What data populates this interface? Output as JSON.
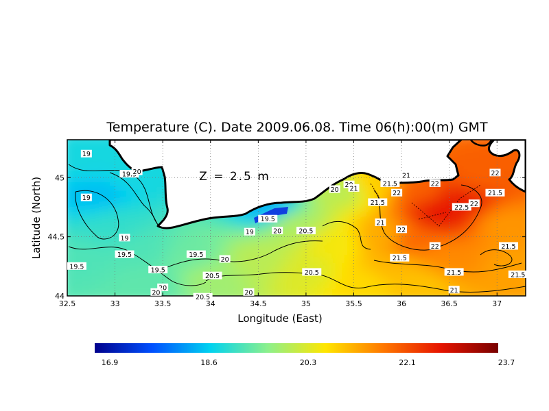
{
  "chart_data": {
    "type": "heatmap",
    "title": "Temperature (C). Date 2009.06.08. Time 06(h):00(m) GMT",
    "xlabel": "Longitude (East)",
    "ylabel": "Latitude (North)",
    "annotation": "Z = 2.5 m",
    "xlim": [
      32.5,
      37.3
    ],
    "ylim": [
      44.0,
      45.32
    ],
    "grid": true,
    "x_ticks": [
      "32.5",
      "33",
      "33.5",
      "34",
      "34.5",
      "35",
      "35.5",
      "36",
      "36.5",
      "37"
    ],
    "y_ticks": [
      "44",
      "44.5",
      "45"
    ],
    "colorbar": {
      "min": 16.9,
      "max": 23.7,
      "labels": [
        "16.9",
        "18.6",
        "20.3",
        "22.1",
        "23.7"
      ],
      "colors": [
        "#00008c",
        "#0050ff",
        "#00d2f0",
        "#8cf08c",
        "#ffe600",
        "#ff7800",
        "#e61400",
        "#780000"
      ]
    },
    "field_samples": [
      {
        "lon": 32.6,
        "lat": 45.15,
        "value": 19.0
      },
      {
        "lon": 32.8,
        "lat": 44.85,
        "value": 18.7
      },
      {
        "lon": 33.2,
        "lat": 45.05,
        "value": 19.0
      },
      {
        "lon": 33.0,
        "lat": 44.6,
        "value": 19.2
      },
      {
        "lon": 32.6,
        "lat": 44.3,
        "value": 19.4
      },
      {
        "lon": 33.3,
        "lat": 44.4,
        "value": 19.4
      },
      {
        "lon": 33.4,
        "lat": 44.1,
        "value": 19.5
      },
      {
        "lon": 33.8,
        "lat": 44.35,
        "value": 19.6
      },
      {
        "lon": 34.0,
        "lat": 44.15,
        "value": 20.0
      },
      {
        "lon": 34.5,
        "lat": 44.3,
        "value": 20.2
      },
      {
        "lon": 34.6,
        "lat": 44.75,
        "value": 18.6
      },
      {
        "lon": 34.9,
        "lat": 44.6,
        "value": 20.1
      },
      {
        "lon": 35.0,
        "lat": 44.2,
        "value": 20.5
      },
      {
        "lon": 35.3,
        "lat": 44.45,
        "value": 20.7
      },
      {
        "lon": 35.4,
        "lat": 44.9,
        "value": 20.2
      },
      {
        "lon": 35.6,
        "lat": 44.1,
        "value": 20.9
      },
      {
        "lon": 35.8,
        "lat": 44.5,
        "value": 21.3
      },
      {
        "lon": 35.7,
        "lat": 44.95,
        "value": 21.0
      },
      {
        "lon": 36.2,
        "lat": 44.9,
        "value": 22.0
      },
      {
        "lon": 36.4,
        "lat": 44.7,
        "value": 22.7
      },
      {
        "lon": 36.6,
        "lat": 44.82,
        "value": 22.6
      },
      {
        "lon": 36.8,
        "lat": 45.0,
        "value": 22.0
      },
      {
        "lon": 36.1,
        "lat": 44.45,
        "value": 21.9
      },
      {
        "lon": 36.5,
        "lat": 44.3,
        "value": 21.6
      },
      {
        "lon": 37.1,
        "lat": 44.6,
        "value": 21.5
      },
      {
        "lon": 37.2,
        "lat": 44.25,
        "value": 21.4
      },
      {
        "lon": 36.2,
        "lat": 44.1,
        "value": 21.1
      },
      {
        "lon": 35.9,
        "lat": 44.25,
        "value": 21.2
      }
    ],
    "contour_labels": [
      {
        "text": "19",
        "lon": 32.7,
        "lat": 45.2
      },
      {
        "text": "19.5",
        "lon": 33.15,
        "lat": 45.03
      },
      {
        "text": "20",
        "lon": 33.23,
        "lat": 45.05
      },
      {
        "text": "19",
        "lon": 32.7,
        "lat": 44.83
      },
      {
        "text": "19",
        "lon": 33.1,
        "lat": 44.49
      },
      {
        "text": "19.5",
        "lon": 33.1,
        "lat": 44.35
      },
      {
        "text": "19.5",
        "lon": 32.6,
        "lat": 44.25
      },
      {
        "text": "19.5",
        "lon": 33.45,
        "lat": 44.22
      },
      {
        "text": "20",
        "lon": 33.5,
        "lat": 44.07
      },
      {
        "text": "20",
        "lon": 33.43,
        "lat": 44.03
      },
      {
        "text": "19.5",
        "lon": 33.85,
        "lat": 44.35
      },
      {
        "text": "20",
        "lon": 34.15,
        "lat": 44.31
      },
      {
        "text": "20.5",
        "lon": 34.02,
        "lat": 44.17
      },
      {
        "text": "20.5",
        "lon": 33.92,
        "lat": 43.99
      },
      {
        "text": "20",
        "lon": 34.4,
        "lat": 44.03
      },
      {
        "text": "19",
        "lon": 34.41,
        "lat": 44.54
      },
      {
        "text": "19.5",
        "lon": 34.6,
        "lat": 44.65
      },
      {
        "text": "20",
        "lon": 34.7,
        "lat": 44.55
      },
      {
        "text": "20.5",
        "lon": 35.0,
        "lat": 44.55
      },
      {
        "text": "20.5",
        "lon": 35.06,
        "lat": 44.2
      },
      {
        "text": "20",
        "lon": 35.3,
        "lat": 44.9
      },
      {
        "text": "20",
        "lon": 35.45,
        "lat": 44.94
      },
      {
        "text": "21",
        "lon": 35.5,
        "lat": 44.91
      },
      {
        "text": "21",
        "lon": 35.78,
        "lat": 44.62
      },
      {
        "text": "21",
        "lon": 36.05,
        "lat": 45.02
      },
      {
        "text": "21.5",
        "lon": 35.88,
        "lat": 44.95
      },
      {
        "text": "22",
        "lon": 35.95,
        "lat": 44.87
      },
      {
        "text": "21.5",
        "lon": 35.75,
        "lat": 44.79
      },
      {
        "text": "22",
        "lon": 36.35,
        "lat": 44.95
      },
      {
        "text": "22.5",
        "lon": 36.63,
        "lat": 44.75
      },
      {
        "text": "22",
        "lon": 36.76,
        "lat": 44.78
      },
      {
        "text": "22",
        "lon": 36.98,
        "lat": 45.04
      },
      {
        "text": "21.5",
        "lon": 36.98,
        "lat": 44.87
      },
      {
        "text": "22",
        "lon": 36.0,
        "lat": 44.56
      },
      {
        "text": "22",
        "lon": 36.35,
        "lat": 44.42
      },
      {
        "text": "21.5",
        "lon": 35.98,
        "lat": 44.32
      },
      {
        "text": "21.5",
        "lon": 37.12,
        "lat": 44.42
      },
      {
        "text": "21.5",
        "lon": 36.55,
        "lat": 44.2
      },
      {
        "text": "21.5",
        "lon": 37.22,
        "lat": 44.18
      },
      {
        "text": "21",
        "lon": 36.55,
        "lat": 44.05
      }
    ]
  }
}
